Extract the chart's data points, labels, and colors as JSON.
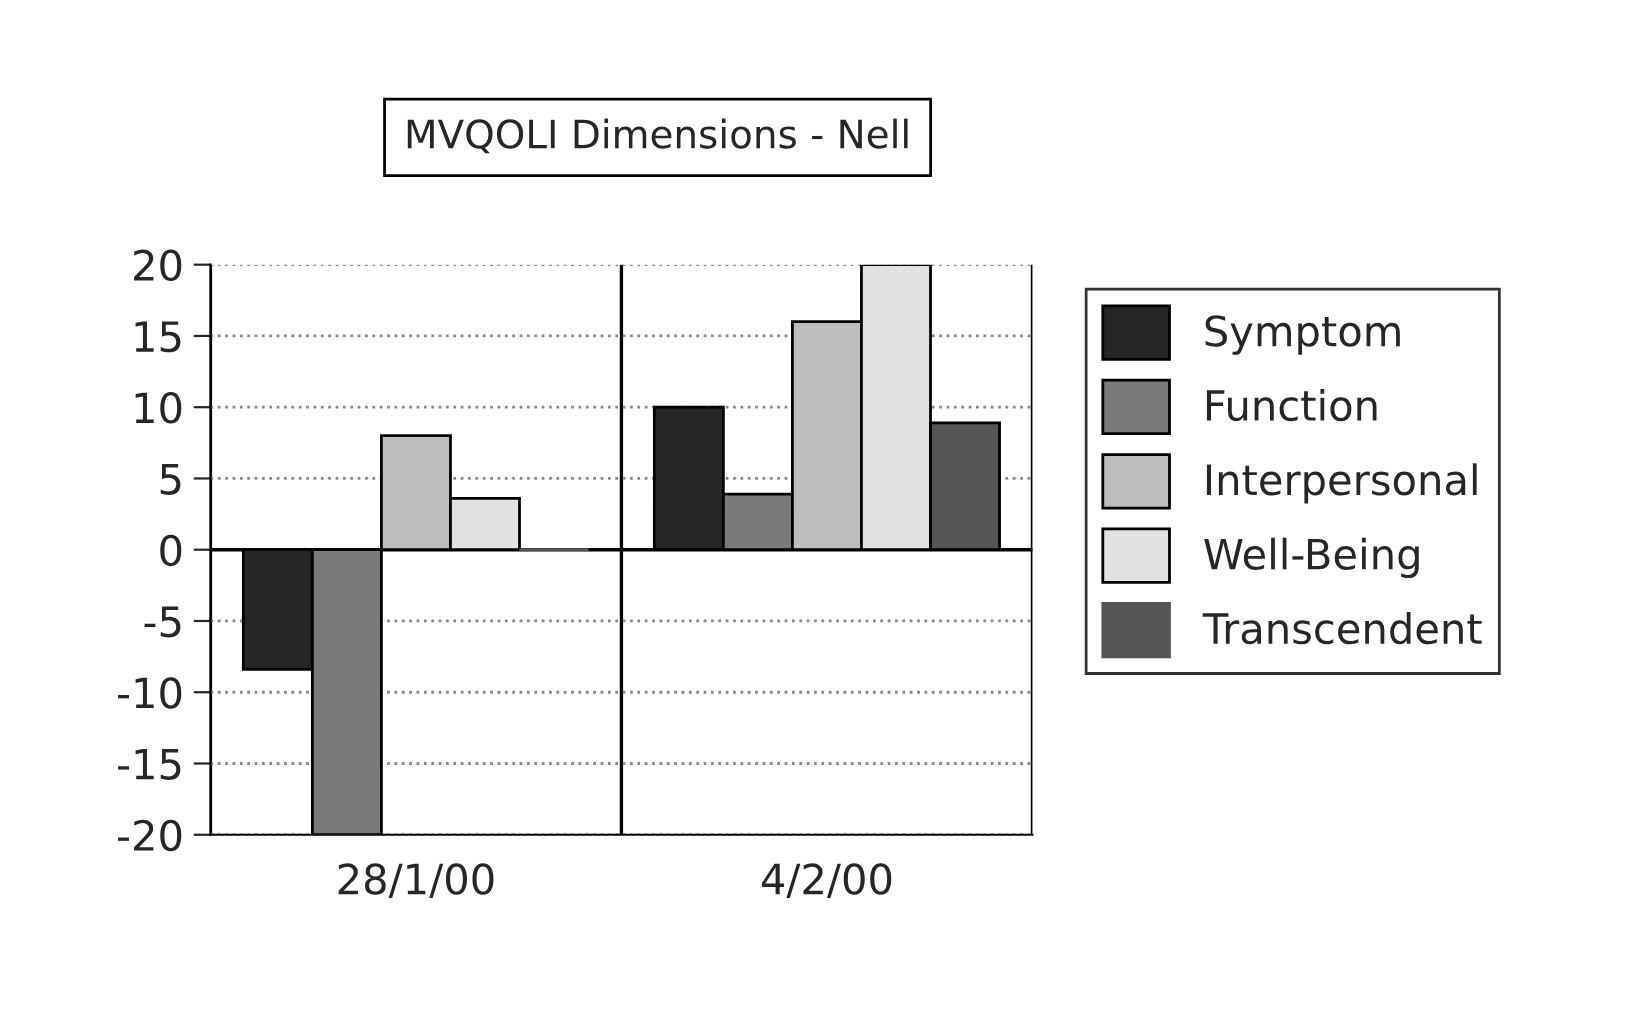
{
  "chart_data": {
    "type": "bar",
    "title": "MVQOLI Dimensions - Nell",
    "categories": [
      "28/1/00",
      "4/2/00"
    ],
    "series": [
      {
        "name": "Symptom",
        "color": "#262626",
        "values": [
          -8.4,
          10
        ]
      },
      {
        "name": "Function",
        "color": "#7a7a7a",
        "values": [
          -20,
          3.9
        ]
      },
      {
        "name": "Interpersonal",
        "color": "#bdbdbd",
        "values": [
          8,
          16
        ]
      },
      {
        "name": "Well-Being",
        "color": "#e2e2e2",
        "values": [
          3.6,
          20
        ]
      },
      {
        "name": "Transcendent",
        "color": "#555555",
        "values": [
          0,
          8.9
        ]
      }
    ],
    "ylim": [
      -20,
      20
    ],
    "yticks": [
      -20,
      -15,
      -10,
      -5,
      0,
      5,
      10,
      15,
      20
    ],
    "grid": "y",
    "legend": "right"
  }
}
